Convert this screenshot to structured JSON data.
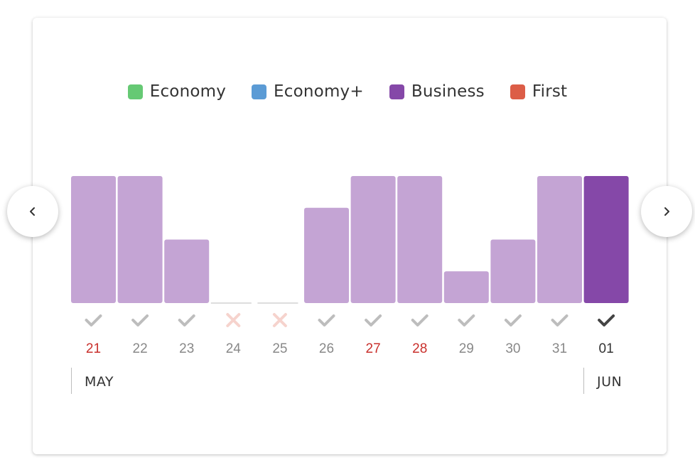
{
  "legend": [
    {
      "label": "Economy",
      "color": "#66c974"
    },
    {
      "label": "Economy+",
      "color": "#5b9bd5"
    },
    {
      "label": "Business",
      "color": "#8548a8"
    },
    {
      "label": "First",
      "color": "#dc5d47"
    }
  ],
  "navigation": {
    "prev_icon": "chevron-left-icon",
    "next_icon": "chevron-right-icon"
  },
  "months": [
    {
      "label": "MAY"
    },
    {
      "label": "JUN"
    }
  ],
  "colors": {
    "bar": "#c4a4d4",
    "bar_selected": "#8548a8",
    "empty_bar": "#dddddd",
    "check": "#bdbdbd",
    "check_selected": "#444444",
    "cross": "#f6d3cd",
    "day_normal": "#888888",
    "day_highlight": "#c9302c",
    "day_selected": "#333333"
  },
  "chart_data": {
    "type": "bar",
    "categories": [
      "21",
      "22",
      "23",
      "24",
      "25",
      "26",
      "27",
      "28",
      "29",
      "30",
      "31",
      "01"
    ],
    "values": [
      4,
      4,
      2,
      0,
      0,
      3,
      4,
      4,
      1,
      2,
      4,
      4
    ],
    "ylim": [
      0,
      4
    ],
    "available": [
      true,
      true,
      true,
      false,
      false,
      true,
      true,
      true,
      true,
      true,
      true,
      true
    ],
    "highlighted": [
      true,
      false,
      false,
      false,
      false,
      false,
      true,
      true,
      false,
      false,
      false,
      false
    ],
    "selected_index": 11
  }
}
